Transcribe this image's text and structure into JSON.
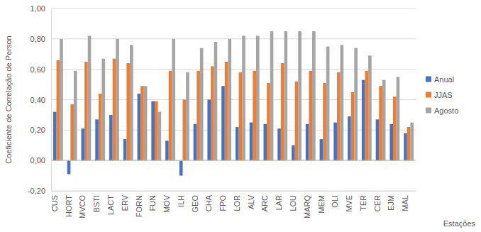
{
  "chart_data": {
    "type": "bar",
    "y_label": "Coeficiente de Correlação de Person",
    "x_label": "Estações",
    "categories": [
      "CUS",
      "HORT",
      "MVCO",
      "BSTI",
      "LACT",
      "ERV",
      "FORN",
      "FUN",
      "MOV",
      "ILH",
      "GEO",
      "CHA",
      "FPO",
      "LOR",
      "ALV",
      "ARC",
      "LAR",
      "LOU",
      "MARQ",
      "MEM",
      "OLI",
      "MVE",
      "TER",
      "CER",
      "EJM",
      "MAL"
    ],
    "series": [
      {
        "name": "Anual",
        "color": "#4472c4",
        "values": [
          0.32,
          -0.09,
          0.21,
          0.27,
          0.3,
          0.14,
          0.44,
          0.39,
          0.13,
          -0.1,
          0.24,
          0.4,
          0.49,
          0.22,
          0.25,
          0.24,
          0.21,
          0.1,
          0.24,
          0.14,
          0.25,
          0.29,
          0.53,
          0.27,
          0.24,
          0.18
        ]
      },
      {
        "name": "JJAS",
        "color": "#ed7d31",
        "values": [
          0.66,
          0.37,
          0.65,
          0.44,
          0.67,
          0.64,
          0.49,
          0.39,
          0.59,
          0.4,
          0.59,
          0.62,
          0.65,
          0.58,
          0.59,
          0.51,
          0.64,
          0.52,
          0.59,
          0.51,
          0.58,
          0.45,
          0.59,
          0.49,
          0.42,
          0.22
        ]
      },
      {
        "name": "Agosto",
        "color": "#a5a5a5",
        "values": [
          0.8,
          0.59,
          0.82,
          0.67,
          0.8,
          0.76,
          0.49,
          0.32,
          0.8,
          0.58,
          0.74,
          0.78,
          0.8,
          0.82,
          0.82,
          0.85,
          0.85,
          0.85,
          0.85,
          0.75,
          0.76,
          0.74,
          0.69,
          0.53,
          0.55,
          0.25
        ]
      }
    ],
    "ylim": [
      -0.2,
      1.0
    ],
    "yticks": [
      {
        "value": -0.2,
        "label": "-0,20"
      },
      {
        "value": 0,
        "label": "0,00"
      },
      {
        "value": 0.2,
        "label": "0,20"
      },
      {
        "value": 0.4,
        "label": "0,40"
      },
      {
        "value": 0.6,
        "label": "0,60"
      },
      {
        "value": 0.8,
        "label": "0,80"
      },
      {
        "value": 1.0,
        "label": "1,00"
      }
    ],
    "grid": true,
    "legend": "right"
  }
}
